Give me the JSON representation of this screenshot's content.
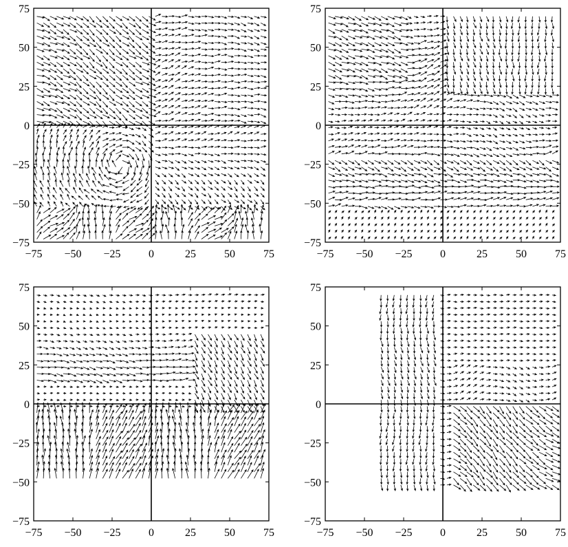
{
  "chart_data": [
    {
      "type": "vector-field",
      "panel": "top-left",
      "xlim": [
        -75,
        75
      ],
      "ylim": [
        -75,
        75
      ],
      "xticks": [
        -75,
        -50,
        -25,
        0,
        25,
        50,
        75
      ],
      "yticks": [
        -75,
        -50,
        -25,
        0,
        25,
        50,
        75
      ],
      "xtick_labels": [
        "−75",
        "−50",
        "−25",
        "0",
        "25",
        "50",
        "75"
      ],
      "ytick_labels": [
        "−75",
        "−50",
        "−25",
        "0",
        "25",
        "50",
        "75"
      ],
      "crosshair": [
        0,
        0
      ],
      "xlabel": "",
      "ylabel": "",
      "title": "",
      "arrow_color": "#000000",
      "masked_region": null
    },
    {
      "type": "vector-field",
      "panel": "top-right",
      "xlim": [
        -75,
        75
      ],
      "ylim": [
        -75,
        75
      ],
      "xticks": [
        -75,
        -50,
        -25,
        0,
        25,
        50,
        75
      ],
      "yticks": [
        -75,
        -50,
        -25,
        0,
        25,
        50,
        75
      ],
      "xtick_labels": [
        "−75",
        "−50",
        "−25",
        "0",
        "25",
        "50",
        "75"
      ],
      "ytick_labels": [
        "−75",
        "−50",
        "−25",
        "0",
        "25",
        "50",
        "75"
      ],
      "crosshair": [
        0,
        0
      ],
      "xlabel": "",
      "ylabel": "",
      "title": "",
      "arrow_color": "#000000",
      "masked_region": null
    },
    {
      "type": "vector-field",
      "panel": "bottom-left",
      "xlim": [
        -75,
        75
      ],
      "ylim": [
        -75,
        75
      ],
      "xticks": [
        -75,
        -50,
        -25,
        0,
        25,
        50,
        75
      ],
      "yticks": [
        -75,
        -50,
        -25,
        0,
        25,
        50,
        75
      ],
      "xtick_labels": [
        "−75",
        "−50",
        "−25",
        "0",
        "25",
        "50",
        "75"
      ],
      "ytick_labels": [
        "−75",
        "−50",
        "−25",
        "0",
        "25",
        "50",
        "75"
      ],
      "crosshair": [
        0,
        0
      ],
      "xlabel": "",
      "ylabel": "",
      "title": "",
      "arrow_color": "#000000",
      "masked_region": "y < -48"
    },
    {
      "type": "vector-field",
      "panel": "bottom-right",
      "xlim": [
        -75,
        75
      ],
      "ylim": [
        -75,
        75
      ],
      "xticks": [
        -75,
        -50,
        -25,
        0,
        25,
        50,
        75
      ],
      "yticks": [
        -75,
        -50,
        -25,
        0,
        25,
        50,
        75
      ],
      "xtick_labels": [
        "−75",
        "−50",
        "−25",
        "0",
        "25",
        "50",
        "75"
      ],
      "ytick_labels": [
        "−75",
        "−50",
        "−25",
        "0",
        "25",
        "50",
        "75"
      ],
      "crosshair": [
        0,
        0
      ],
      "xlabel": "",
      "ylabel": "",
      "title": "",
      "arrow_color": "#000000",
      "masked_region": "x < -40 or y < -53"
    }
  ]
}
